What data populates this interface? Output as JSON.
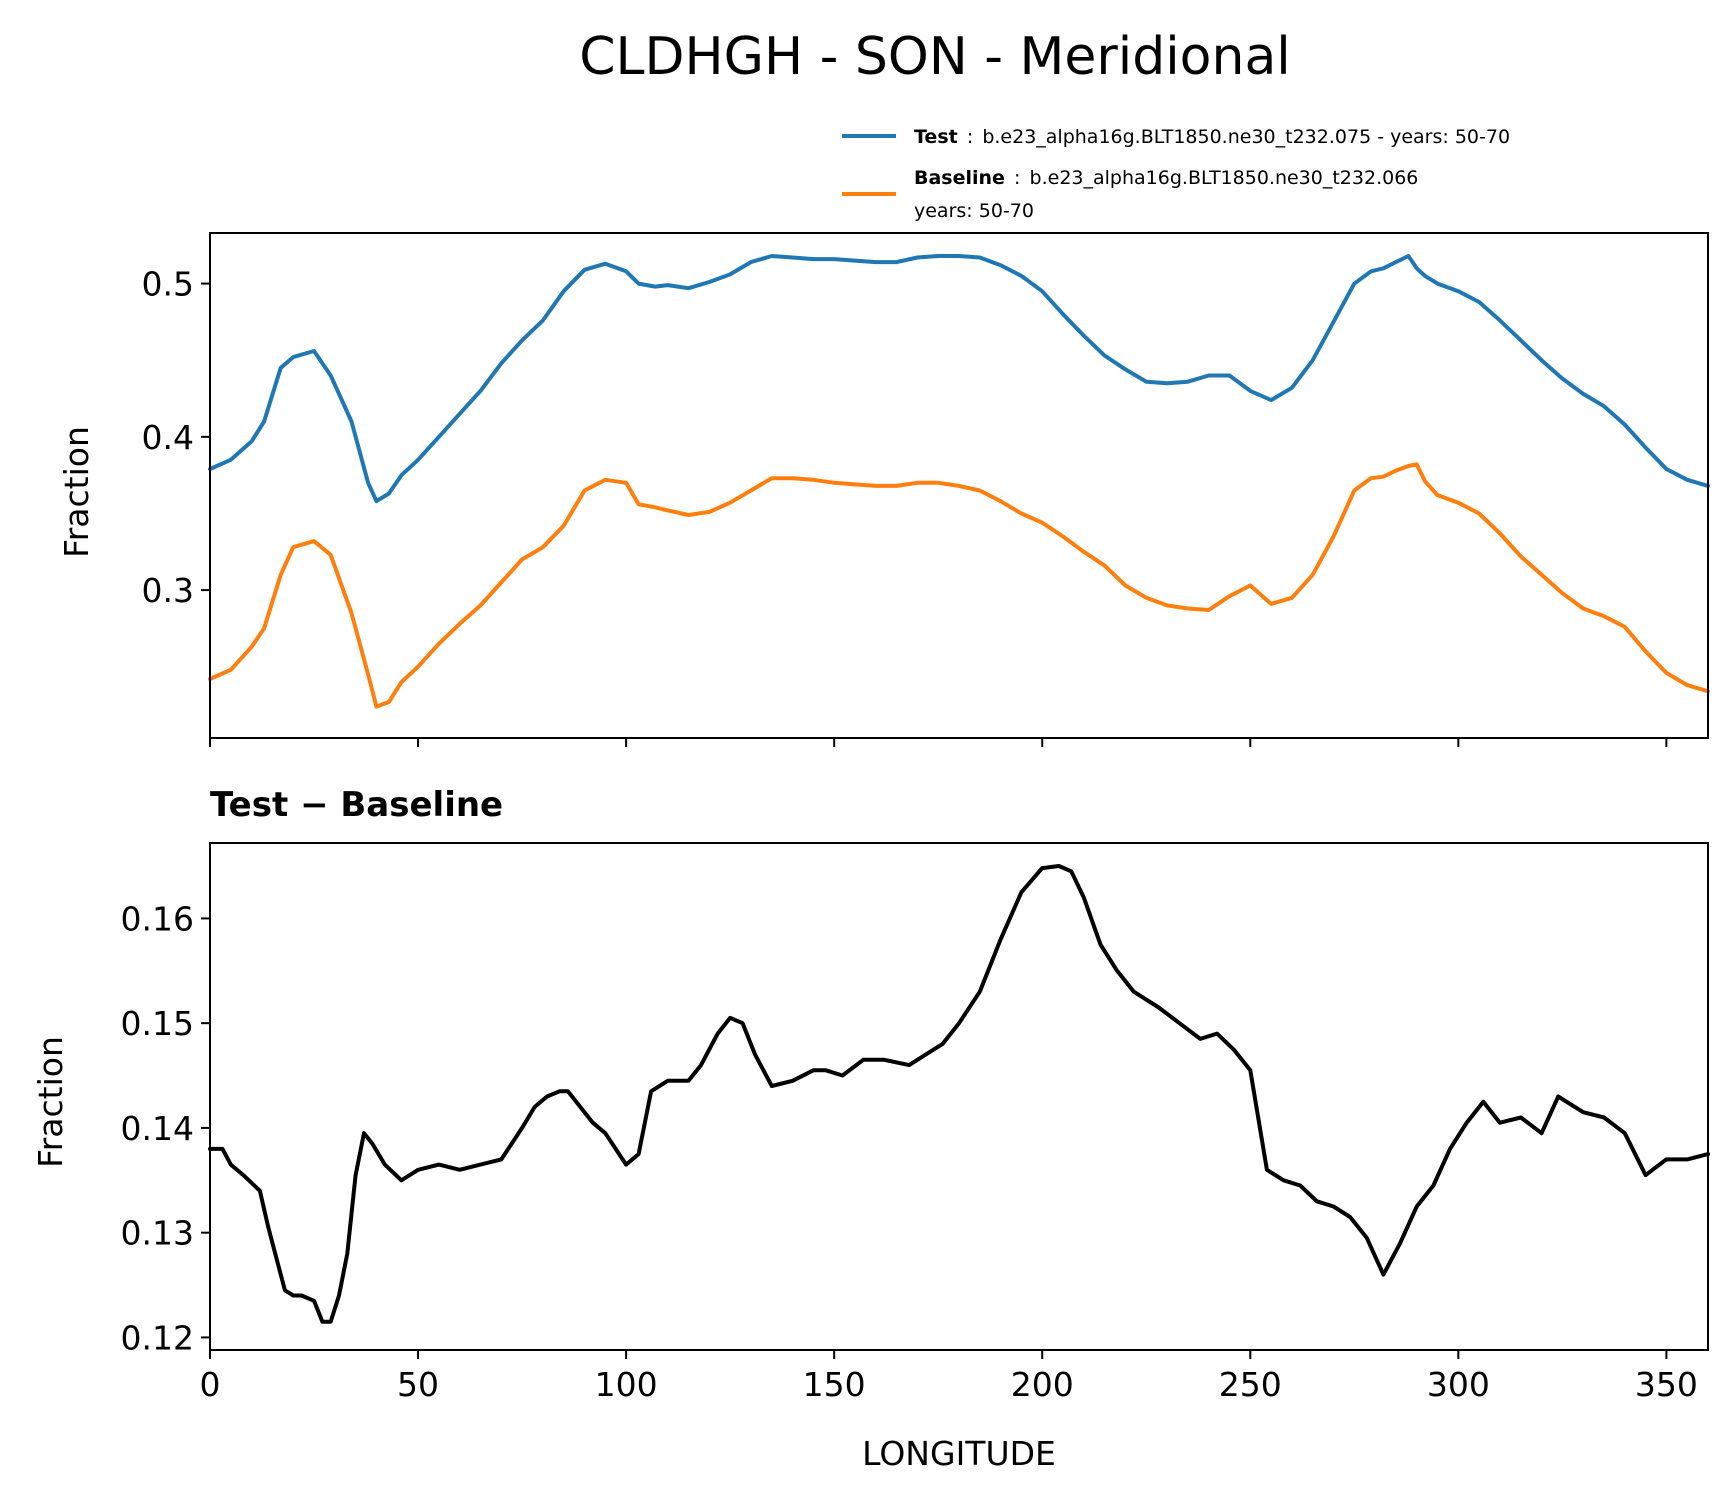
{
  "figure": {
    "title": "CLDHGH - SON - Meridional"
  },
  "legend": {
    "test": {
      "key": "Test",
      "sep": ":",
      "text": "b.e23_alpha16g.BLT1850.ne30_t232.075 - years: 50-70"
    },
    "baseline": {
      "key": "Baseline",
      "sep": ":",
      "text_line1": "b.e23_alpha16g.BLT1850.ne30_t232.066",
      "text_line2": "years: 50-70"
    }
  },
  "colors": {
    "test": "#1f77b4",
    "baseline": "#ff7f0e",
    "difference": "#000000"
  },
  "chart_data": [
    {
      "type": "line",
      "title": "",
      "xlabel": "",
      "ylabel": "Fraction",
      "xlim": [
        0,
        360
      ],
      "ylim": [
        0.2035,
        0.533
      ],
      "yticks": [
        "0.3",
        "0.4",
        "0.5"
      ],
      "xticks": [
        0,
        50,
        100,
        150,
        200,
        250,
        300,
        350
      ],
      "x": [
        0,
        5,
        10,
        13,
        17,
        20,
        25,
        29,
        34,
        38,
        40,
        43,
        46,
        50,
        55,
        60,
        65,
        70,
        75,
        80,
        85,
        90,
        95,
        100,
        103,
        107,
        110,
        115,
        120,
        125,
        130,
        135,
        140,
        145,
        150,
        155,
        160,
        165,
        170,
        175,
        180,
        185,
        190,
        195,
        200,
        205,
        210,
        215,
        220,
        225,
        230,
        235,
        240,
        245,
        250,
        255,
        260,
        265,
        270,
        275,
        279,
        282,
        285,
        288,
        290,
        292,
        295,
        300,
        305,
        310,
        315,
        320,
        325,
        330,
        335,
        340,
        345,
        350,
        355,
        360
      ],
      "series": [
        {
          "name": "Test",
          "values": [
            0.379,
            0.385,
            0.397,
            0.41,
            0.445,
            0.452,
            0.456,
            0.44,
            0.41,
            0.37,
            0.358,
            0.363,
            0.375,
            0.385,
            0.4,
            0.415,
            0.43,
            0.448,
            0.463,
            0.476,
            0.495,
            0.509,
            0.513,
            0.508,
            0.5,
            0.498,
            0.499,
            0.497,
            0.501,
            0.506,
            0.514,
            0.518,
            0.517,
            0.516,
            0.516,
            0.515,
            0.514,
            0.514,
            0.517,
            0.518,
            0.518,
            0.517,
            0.512,
            0.505,
            0.495,
            0.48,
            0.466,
            0.453,
            0.444,
            0.436,
            0.435,
            0.436,
            0.44,
            0.44,
            0.43,
            0.424,
            0.432,
            0.45,
            0.475,
            0.5,
            0.508,
            0.51,
            0.514,
            0.518,
            0.51,
            0.505,
            0.5,
            0.495,
            0.488,
            0.476,
            0.463,
            0.45,
            0.438,
            0.428,
            0.42,
            0.408,
            0.393,
            0.379,
            0.372,
            0.368
          ]
        },
        {
          "name": "Baseline",
          "values": [
            0.242,
            0.248,
            0.263,
            0.275,
            0.31,
            0.328,
            0.332,
            0.323,
            0.285,
            0.245,
            0.224,
            0.227,
            0.24,
            0.25,
            0.265,
            0.278,
            0.29,
            0.305,
            0.32,
            0.328,
            0.342,
            0.365,
            0.372,
            0.37,
            0.356,
            0.354,
            0.352,
            0.349,
            0.351,
            0.357,
            0.365,
            0.373,
            0.373,
            0.372,
            0.37,
            0.369,
            0.368,
            0.368,
            0.37,
            0.37,
            0.368,
            0.365,
            0.358,
            0.35,
            0.344,
            0.335,
            0.325,
            0.316,
            0.303,
            0.295,
            0.29,
            0.288,
            0.287,
            0.296,
            0.303,
            0.291,
            0.295,
            0.31,
            0.335,
            0.365,
            0.373,
            0.374,
            0.378,
            0.381,
            0.382,
            0.371,
            0.362,
            0.357,
            0.35,
            0.337,
            0.322,
            0.31,
            0.298,
            0.288,
            0.283,
            0.276,
            0.26,
            0.246,
            0.238,
            0.234
          ]
        }
      ]
    },
    {
      "type": "line",
      "title": "Test − Baseline",
      "xlabel": "LONGITUDE",
      "ylabel": "Fraction",
      "xlim": [
        0,
        360
      ],
      "ylim": [
        0.1188,
        0.1672
      ],
      "yticks": [
        "0.12",
        "0.13",
        "0.14",
        "0.15",
        "0.16"
      ],
      "xticks": [
        0,
        50,
        100,
        150,
        200,
        250,
        300,
        350
      ],
      "x": [
        0,
        3,
        5,
        8,
        12,
        14,
        18,
        20,
        22,
        25,
        27,
        29,
        31,
        33,
        35,
        37,
        39,
        42,
        46,
        50,
        55,
        60,
        65,
        70,
        75,
        78,
        81,
        84,
        86,
        88,
        92,
        95,
        100,
        103,
        106,
        110,
        115,
        118,
        122,
        125,
        128,
        131,
        135,
        140,
        145,
        148,
        152,
        157,
        162,
        168,
        172,
        176,
        180,
        185,
        190,
        195,
        200,
        204,
        207,
        210,
        214,
        218,
        222,
        228,
        233,
        238,
        242,
        246,
        250,
        254,
        258,
        262,
        266,
        270,
        274,
        278,
        282,
        286,
        290,
        294,
        298,
        302,
        306,
        310,
        315,
        320,
        324,
        330,
        335,
        340,
        345,
        350,
        355,
        360
      ],
      "series": [
        {
          "values": [
            0.138,
            0.138,
            0.1365,
            0.1355,
            0.134,
            0.1305,
            0.1245,
            0.124,
            0.124,
            0.1235,
            0.1215,
            0.1215,
            0.124,
            0.128,
            0.1355,
            0.1395,
            0.1385,
            0.1365,
            0.135,
            0.136,
            0.1365,
            0.136,
            0.1365,
            0.137,
            0.14,
            0.142,
            0.143,
            0.1435,
            0.1435,
            0.1425,
            0.1405,
            0.1395,
            0.1365,
            0.1375,
            0.1435,
            0.1445,
            0.1445,
            0.146,
            0.149,
            0.1505,
            0.15,
            0.147,
            0.144,
            0.1445,
            0.1455,
            0.1455,
            0.145,
            0.1465,
            0.1465,
            0.146,
            0.147,
            0.148,
            0.15,
            0.153,
            0.158,
            0.1625,
            0.1648,
            0.165,
            0.1645,
            0.162,
            0.1575,
            0.155,
            0.153,
            0.1515,
            0.15,
            0.1485,
            0.149,
            0.1475,
            0.1455,
            0.136,
            0.135,
            0.1345,
            0.133,
            0.1325,
            0.1315,
            0.1295,
            0.126,
            0.129,
            0.1325,
            0.1345,
            0.138,
            0.1405,
            0.1425,
            0.1405,
            0.141,
            0.1395,
            0.143,
            0.1415,
            0.141,
            0.1395,
            0.1355,
            0.137,
            0.137,
            0.1375
          ]
        }
      ]
    }
  ]
}
